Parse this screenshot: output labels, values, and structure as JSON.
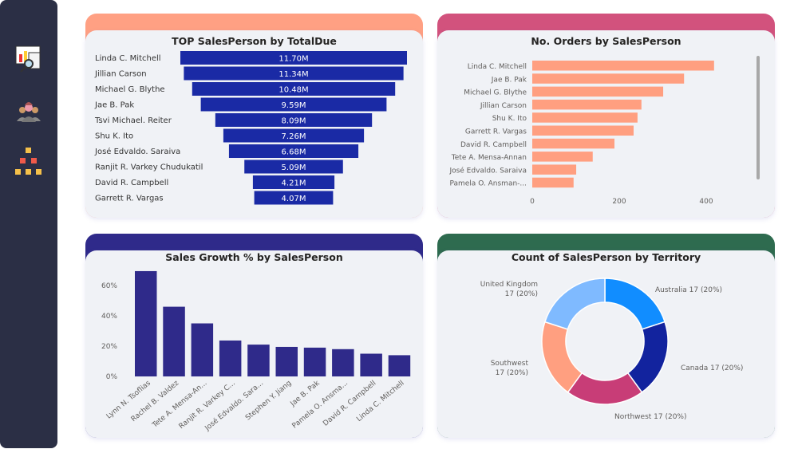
{
  "sidebar": {
    "items": [
      {
        "icon": "report-analysis-icon"
      },
      {
        "icon": "team-icon"
      },
      {
        "icon": "hierarchy-icon"
      }
    ]
  },
  "colors": {
    "funnel": "#1a2aa5",
    "orders": "#ff9f80",
    "growth": "#2f2a8a",
    "headers": [
      "#ffa083",
      "#d2527d",
      "#2f2a8a",
      "#2e6b4f"
    ]
  },
  "chart_data": [
    {
      "type": "funnel",
      "title": "TOP SalesPerson by TotalDue",
      "categories": [
        "Linda C. Mitchell",
        "Jillian Carson",
        "Michael G. Blythe",
        "Jae B. Pak",
        "Tsvi Michael. Reiter",
        "Shu K. Ito",
        "José Edvaldo. Saraiva",
        "Ranjit R. Varkey Chudukatil",
        "David R. Campbell",
        "Garrett R. Vargas"
      ],
      "values": [
        11.7,
        11.34,
        10.48,
        9.59,
        8.09,
        7.26,
        6.68,
        5.09,
        4.21,
        4.07
      ],
      "labels": [
        "11.70M",
        "11.34M",
        "10.48M",
        "9.59M",
        "8.09M",
        "7.26M",
        "6.68M",
        "5.09M",
        "4.21M",
        "4.07M"
      ]
    },
    {
      "type": "bar",
      "orientation": "horizontal",
      "title": "No. Orders by SalesPerson",
      "categories": [
        "Linda C. Mitchell",
        "Jae B. Pak",
        "Michael G. Blythe",
        "Jillian Carson",
        "Shu K. Ito",
        "Garrett R. Vargas",
        "David R. Campbell",
        "Tete A. Mensa-Annan",
        "José Edvaldo. Saraiva",
        "Pamela O. Ansman-..."
      ],
      "values": [
        418,
        349,
        301,
        251,
        242,
        233,
        189,
        139,
        101,
        95
      ],
      "xticks": [
        "0",
        "200",
        "400"
      ],
      "xlim": [
        0,
        480
      ]
    },
    {
      "type": "bar",
      "title": "Sales Growth % by SalesPerson",
      "categories": [
        "Lynn N. Tsoflias",
        "Rachel B. Valdez",
        "Tete A. Mensa-An...",
        "Ranjit R. Varkey C...",
        "José Edvaldo. Sara...",
        "Stephen Y. Jiang",
        "Jae B. Pak",
        "Pamela O. Ansma...",
        "David R. Campbell",
        "Linda C. Mitchell"
      ],
      "values": [
        69.5,
        46,
        35,
        23.7,
        21,
        19.5,
        19,
        18,
        15,
        14
      ],
      "yticks": [
        "0%",
        "20%",
        "40%",
        "60%"
      ],
      "ylim": [
        0,
        70
      ]
    },
    {
      "type": "pie",
      "donut": true,
      "title": "Count of SalesPerson by Territory",
      "categories": [
        "Australia",
        "Canada",
        "Northwest",
        "Southwest",
        "United Kingdom"
      ],
      "values": [
        17,
        17,
        17,
        17,
        17
      ],
      "labels": [
        "Australia 17 (20%)",
        "Canada 17 (20%)",
        "Northwest 17 (20%)",
        "Southwest",
        "United Kingdom"
      ],
      "sublabels": [
        "",
        "",
        "",
        "17 (20%)",
        "17 (20%)"
      ],
      "colors": [
        "#118dff",
        "#12239e",
        "#c83d77",
        "#ff9f80",
        "#7fbaff"
      ]
    }
  ]
}
